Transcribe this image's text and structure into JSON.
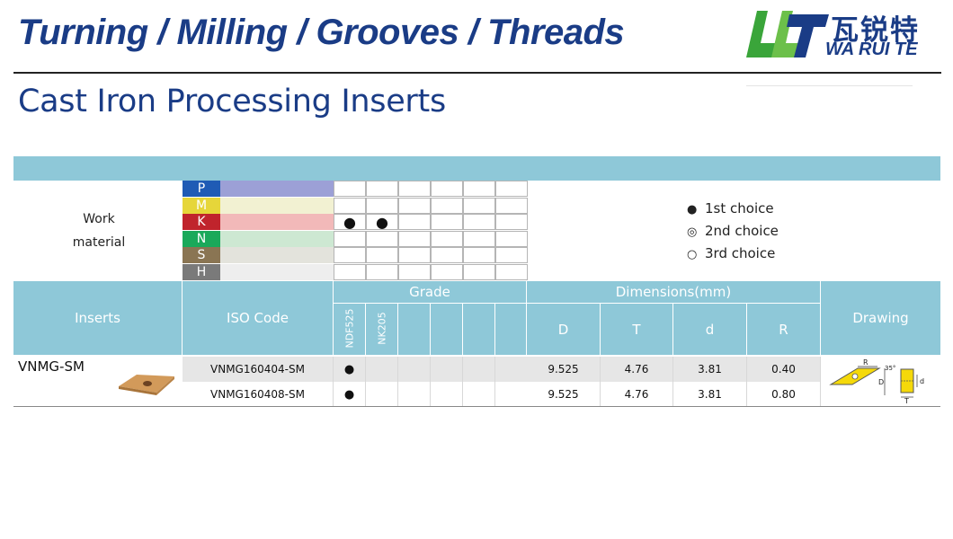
{
  "header": {
    "banner_title": "Turning / Milling / Grooves / Threads",
    "logo_cn": "瓦锐特",
    "logo_en": "WA RUI TE",
    "page_title": "Cast Iron Processing Inserts"
  },
  "work_material": {
    "label_line1": "Work",
    "label_line2": "material",
    "materials": [
      {
        "code": "P",
        "color": "#1f5bb5",
        "swatch": "#9ca0d6",
        "marks": [
          "",
          "",
          "",
          "",
          "",
          ""
        ]
      },
      {
        "code": "M",
        "color": "#e6d63a",
        "swatch": "#f2f1d2",
        "marks": [
          "",
          "",
          "",
          "",
          "",
          ""
        ]
      },
      {
        "code": "K",
        "color": "#c0242c",
        "swatch": "#f2b9b9",
        "marks": [
          "●",
          "●",
          "",
          "",
          "",
          ""
        ]
      },
      {
        "code": "N",
        "color": "#1aa95a",
        "swatch": "#cde8d2",
        "marks": [
          "",
          "",
          "",
          "",
          "",
          ""
        ]
      },
      {
        "code": "S",
        "color": "#8a7553",
        "swatch": "#e3e3dc",
        "marks": [
          "",
          "",
          "",
          "",
          "",
          ""
        ]
      },
      {
        "code": "H",
        "color": "#7a7a7a",
        "swatch": "#eeeeee",
        "marks": [
          "",
          "",
          "",
          "",
          "",
          ""
        ]
      }
    ]
  },
  "legend": [
    {
      "symbol": "●",
      "label": "1st choice"
    },
    {
      "symbol": "◎",
      "label": "2nd choice"
    },
    {
      "symbol": "○",
      "label": "3rd choice"
    }
  ],
  "table": {
    "col_inserts": "Inserts",
    "col_iso": "ISO Code",
    "col_grade": "Grade",
    "grades": [
      "NDF525",
      "NK205"
    ],
    "col_dimensions": "Dimensions(mm)",
    "dim_cols": [
      "D",
      "T",
      "d",
      "R"
    ],
    "col_drawing": "Drawing",
    "insert_family": "VNMG-SM",
    "rows": [
      {
        "iso": "VNMG160404-SM",
        "grade_marks": [
          "●",
          "",
          "",
          "",
          "",
          ""
        ],
        "D": "9.525",
        "T": "4.76",
        "d": "3.81",
        "R": "0.40"
      },
      {
        "iso": "VNMG160408-SM",
        "grade_marks": [
          "●",
          "",
          "",
          "",
          "",
          ""
        ],
        "D": "9.525",
        "T": "4.76",
        "d": "3.81",
        "R": "0.80"
      }
    ]
  },
  "drawing_labels": {
    "R": "R",
    "angle": "35°",
    "D": "D",
    "d": "d",
    "T": "T"
  }
}
